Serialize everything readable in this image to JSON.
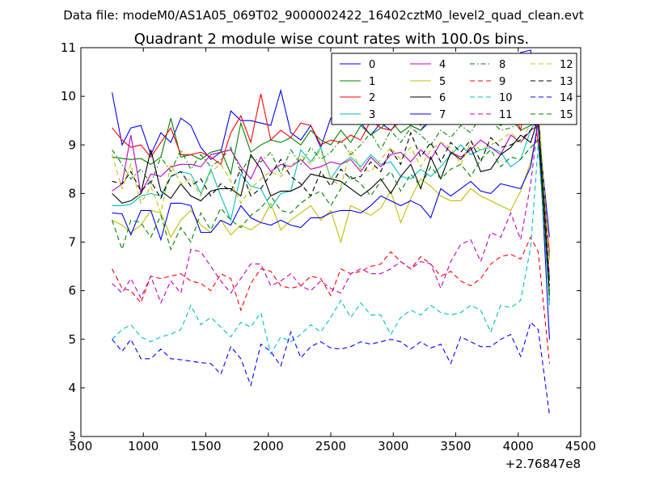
{
  "chart_data": {
    "type": "line",
    "supertitle": "Data file: modeM0/AS1A05_069T02_9000002422_16402cztM0_level2_quad_clean.evt",
    "title": "Quadrant 2 module wise count rates with 100.0s bins.",
    "xlabel": "",
    "ylabel": "",
    "x_offset_label": "+2.76847e8",
    "xlim": [
      500,
      4500
    ],
    "ylim": [
      3,
      11
    ],
    "xticks": [
      500,
      1000,
      1500,
      2000,
      2500,
      3000,
      3500,
      4000,
      4500
    ],
    "yticks": [
      3,
      4,
      5,
      6,
      7,
      8,
      9,
      10,
      11
    ],
    "grid": false,
    "legend_position": "top-right",
    "x": [
      750,
      830,
      900,
      980,
      1060,
      1140,
      1220,
      1300,
      1380,
      1460,
      1540,
      1620,
      1700,
      1780,
      1860,
      1940,
      2020,
      2100,
      2180,
      2260,
      2340,
      2420,
      2500,
      2580,
      2660,
      2740,
      2820,
      2900,
      2980,
      3060,
      3140,
      3220,
      3300,
      3380,
      3460,
      3540,
      3620,
      3700,
      3780,
      3860,
      3940,
      4020,
      4100,
      4160,
      4250
    ],
    "series": [
      {
        "name": "0",
        "color": "#0000ff",
        "dash": "solid",
        "values": [
          10.08,
          9.0,
          9.35,
          9.4,
          8.8,
          9.25,
          9.05,
          9.55,
          9.4,
          8.95,
          8.7,
          8.85,
          9.7,
          9.5,
          9.5,
          9.45,
          9.4,
          10.12,
          9.25,
          9.1,
          9.4,
          8.95,
          9.55,
          9.5,
          9.6,
          9.45,
          9.2,
          9.45,
          9.3,
          9.55,
          9.4,
          9.3,
          9.5,
          9.6,
          9.75,
          9.65,
          9.8,
          10.05,
          9.9,
          9.95,
          9.85,
          10.9,
          10.95,
          9.4,
          7.1
        ]
      },
      {
        "name": "1",
        "color": "#008000",
        "dash": "solid",
        "values": [
          8.75,
          8.72,
          8.7,
          8.72,
          8.6,
          8.75,
          9.55,
          8.75,
          8.8,
          8.7,
          8.85,
          8.9,
          8.4,
          9.45,
          8.85,
          9.0,
          9.1,
          9.05,
          9.15,
          9.0,
          9.3,
          9.1,
          9.0,
          9.3,
          9.05,
          9.4,
          9.2,
          9.35,
          9.5,
          9.25,
          9.4,
          9.3,
          9.6,
          9.5,
          9.7,
          9.55,
          9.6,
          9.75,
          9.5,
          9.4,
          9.55,
          9.3,
          9.4,
          9.5,
          6.7
        ]
      },
      {
        "name": "2",
        "color": "#ff0000",
        "dash": "solid",
        "values": [
          9.35,
          9.1,
          8.95,
          9.0,
          8.75,
          9.05,
          9.35,
          8.8,
          8.8,
          8.85,
          8.75,
          8.6,
          9.25,
          9.6,
          9.05,
          10.05,
          9.1,
          9.3,
          9.15,
          9.45,
          9.4,
          9.0,
          9.1,
          9.05,
          9.2,
          9.1,
          9.5,
          9.35,
          9.3,
          9.5,
          9.55,
          9.4,
          9.6,
          9.55,
          9.7,
          9.8,
          9.6,
          9.9,
          9.75,
          9.6,
          9.85,
          9.3,
          10.5,
          9.0,
          6.8
        ]
      },
      {
        "name": "3",
        "color": "#00bfbf",
        "dash": "solid",
        "values": [
          7.75,
          7.75,
          7.78,
          7.95,
          8.0,
          7.95,
          8.35,
          8.45,
          8.4,
          8.0,
          8.5,
          7.95,
          7.45,
          8.4,
          8.15,
          8.1,
          7.7,
          8.0,
          8.05,
          8.9,
          8.65,
          8.95,
          8.3,
          8.6,
          8.75,
          8.55,
          8.8,
          8.6,
          8.65,
          8.35,
          8.3,
          8.5,
          8.35,
          8.55,
          8.8,
          9.0,
          8.8,
          8.9,
          8.95,
          8.85,
          8.55,
          8.7,
          9.3,
          9.6,
          5.7
        ]
      },
      {
        "name": "4",
        "color": "#bf00bf",
        "dash": "solid",
        "values": [
          8.05,
          8.2,
          9.2,
          8.0,
          8.4,
          8.35,
          8.55,
          8.6,
          8.6,
          8.55,
          8.8,
          8.85,
          8.9,
          8.55,
          8.3,
          8.75,
          8.45,
          8.6,
          8.55,
          8.7,
          8.5,
          8.55,
          8.65,
          8.6,
          8.7,
          8.45,
          8.75,
          8.55,
          8.8,
          8.85,
          8.65,
          8.9,
          8.7,
          9.05,
          8.85,
          8.75,
          8.9,
          9.1,
          8.95,
          8.8,
          9.2,
          9.05,
          9.3,
          9.4,
          6.2
        ]
      },
      {
        "name": "5",
        "color": "#bfbf00",
        "dash": "solid",
        "values": [
          7.45,
          7.35,
          7.2,
          7.35,
          7.65,
          7.6,
          7.1,
          7.45,
          7.65,
          7.35,
          7.2,
          7.45,
          7.15,
          7.35,
          7.25,
          7.4,
          7.8,
          7.25,
          7.45,
          7.6,
          7.75,
          7.45,
          7.65,
          7.0,
          7.75,
          7.65,
          7.55,
          7.7,
          8.05,
          7.4,
          7.9,
          8.3,
          8.15,
          7.95,
          7.85,
          7.85,
          8.1,
          7.95,
          7.85,
          7.75,
          7.65,
          8.05,
          8.65,
          9.4,
          6.0
        ]
      },
      {
        "name": "6",
        "color": "#000000",
        "dash": "solid",
        "values": [
          8.0,
          7.8,
          7.85,
          8.0,
          8.9,
          8.05,
          7.9,
          8.2,
          7.95,
          7.85,
          8.05,
          8.1,
          8.1,
          7.95,
          8.8,
          8.5,
          7.95,
          8.05,
          8.05,
          8.15,
          8.4,
          8.35,
          8.3,
          8.25,
          8.1,
          7.95,
          8.1,
          8.3,
          8.0,
          8.35,
          8.6,
          8.1,
          8.75,
          8.3,
          8.85,
          8.7,
          8.95,
          8.45,
          8.5,
          8.8,
          8.95,
          9.2,
          9.05,
          9.55,
          5.9
        ]
      },
      {
        "name": "7",
        "color": "#0000ff",
        "dash": "solid",
        "values": [
          7.6,
          7.58,
          7.15,
          7.65,
          7.65,
          7.05,
          7.8,
          7.8,
          7.75,
          7.2,
          7.2,
          7.45,
          7.35,
          7.75,
          7.5,
          7.4,
          7.35,
          7.45,
          7.35,
          7.3,
          7.5,
          7.5,
          7.6,
          7.65,
          7.65,
          7.6,
          7.75,
          7.95,
          7.85,
          7.75,
          7.85,
          7.75,
          7.5,
          8.1,
          7.95,
          8.1,
          8.25,
          8.05,
          8.0,
          8.2,
          8.15,
          8.1,
          8.55,
          9.5,
          5.0
        ]
      },
      {
        "name": "8",
        "color": "#008000",
        "dash": "dashdot",
        "values": [
          8.9,
          8.6,
          8.3,
          8.5,
          8.2,
          8.75,
          8.45,
          8.9,
          8.5,
          8.8,
          8.55,
          8.7,
          8.95,
          8.45,
          8.75,
          8.65,
          8.85,
          8.4,
          8.9,
          8.6,
          8.95,
          8.7,
          8.85,
          9.1,
          8.8,
          9.0,
          9.25,
          8.9,
          9.3,
          9.05,
          9.35,
          9.2,
          9.0,
          9.3,
          9.15,
          9.4,
          9.25,
          9.6,
          9.5,
          9.3,
          9.35,
          9.45,
          9.65,
          9.8,
          6.2
        ]
      },
      {
        "name": "9",
        "color": "#ff0000",
        "dash": "dashed",
        "values": [
          6.45,
          6.05,
          6.0,
          5.75,
          6.3,
          6.25,
          6.3,
          6.35,
          6.2,
          6.15,
          6.0,
          6.35,
          6.25,
          5.6,
          6.15,
          6.45,
          6.4,
          6.1,
          6.05,
          6.1,
          6.3,
          6.25,
          5.9,
          6.45,
          6.35,
          6.4,
          6.5,
          6.55,
          6.8,
          6.6,
          6.45,
          6.7,
          6.55,
          6.3,
          6.4,
          6.2,
          6.1,
          6.25,
          6.55,
          6.7,
          6.75,
          6.65,
          7.1,
          6.8,
          4.5
        ]
      },
      {
        "name": "10",
        "color": "#00bfbf",
        "dash": "dashed",
        "values": [
          5.0,
          5.2,
          5.3,
          5.05,
          4.95,
          5.05,
          5.1,
          5.2,
          5.7,
          5.3,
          5.45,
          5.25,
          5.05,
          5.35,
          5.25,
          5.55,
          4.7,
          5.05,
          4.95,
          5.1,
          5.3,
          5.15,
          5.45,
          5.8,
          5.45,
          5.75,
          5.5,
          5.5,
          5.1,
          5.45,
          5.6,
          5.5,
          5.7,
          5.55,
          5.5,
          5.55,
          5.7,
          5.6,
          5.15,
          5.7,
          5.65,
          5.8,
          6.9,
          9.0,
          5.8
        ]
      },
      {
        "name": "11",
        "color": "#bf00bf",
        "dash": "dashed",
        "values": [
          6.15,
          5.95,
          6.25,
          5.85,
          6.3,
          5.75,
          6.2,
          5.95,
          6.85,
          6.8,
          6.5,
          6.2,
          5.95,
          6.25,
          6.55,
          6.55,
          6.1,
          6.2,
          6.35,
          6.1,
          6.0,
          6.2,
          6.05,
          5.95,
          6.35,
          6.45,
          6.35,
          6.35,
          6.45,
          6.6,
          6.45,
          6.6,
          6.55,
          6.05,
          6.6,
          6.95,
          7.05,
          6.6,
          7.2,
          7.1,
          7.6,
          7.05,
          8.2,
          9.5,
          6.3
        ]
      },
      {
        "name": "12",
        "color": "#bfbf00",
        "dash": "dashed",
        "values": [
          8.8,
          8.1,
          8.6,
          7.8,
          8.15,
          7.6,
          8.6,
          8.2,
          8.3,
          7.95,
          8.45,
          8.6,
          8.25,
          7.8,
          8.1,
          8.3,
          8.45,
          8.35,
          8.55,
          8.8,
          8.6,
          8.9,
          8.3,
          8.15,
          8.9,
          8.5,
          8.45,
          8.7,
          8.95,
          8.7,
          8.95,
          8.55,
          8.9,
          9.05,
          8.95,
          8.6,
          9.05,
          8.9,
          9.0,
          9.1,
          9.25,
          9.05,
          9.45,
          9.8,
          6.6
        ]
      },
      {
        "name": "13",
        "color": "#000000",
        "dash": "dashed",
        "values": [
          8.25,
          8.2,
          8.45,
          8.05,
          8.25,
          7.9,
          8.35,
          8.45,
          8.15,
          8.3,
          7.95,
          8.2,
          8.05,
          8.5,
          7.95,
          8.1,
          8.4,
          8.7,
          8.35,
          8.2,
          7.95,
          8.45,
          8.15,
          8.5,
          8.3,
          8.35,
          8.65,
          8.45,
          8.9,
          8.6,
          9.25,
          8.75,
          9.05,
          8.65,
          9.05,
          8.85,
          9.1,
          8.65,
          9.15,
          8.95,
          9.0,
          9.1,
          9.3,
          9.5,
          6.1
        ]
      },
      {
        "name": "14",
        "color": "#0000ff",
        "dash": "dashed",
        "values": [
          5.0,
          4.75,
          5.0,
          4.6,
          4.6,
          4.8,
          4.6,
          4.58,
          4.55,
          4.52,
          4.5,
          4.28,
          4.85,
          4.6,
          4.05,
          4.9,
          4.75,
          4.45,
          5.15,
          4.62,
          4.85,
          4.95,
          4.82,
          4.8,
          4.85,
          4.95,
          4.9,
          4.95,
          5.0,
          4.95,
          4.8,
          4.95,
          4.82,
          4.9,
          4.5,
          5.05,
          4.95,
          4.85,
          4.85,
          5.0,
          5.1,
          4.65,
          5.35,
          5.2,
          3.45
        ]
      },
      {
        "name": "15",
        "color": "#008000",
        "dash": "dashed",
        "values": [
          7.45,
          6.85,
          7.45,
          7.4,
          7.1,
          7.55,
          6.85,
          7.3,
          7.0,
          7.6,
          7.25,
          7.7,
          7.45,
          7.3,
          7.55,
          7.7,
          7.95,
          7.65,
          7.6,
          7.8,
          7.95,
          8.05,
          7.75,
          8.1,
          8.35,
          8.2,
          7.95,
          8.25,
          8.45,
          8.05,
          8.4,
          8.15,
          8.55,
          8.3,
          8.5,
          8.6,
          8.35,
          8.7,
          8.9,
          8.55,
          8.75,
          8.7,
          8.95,
          9.1,
          5.8
        ]
      }
    ]
  }
}
